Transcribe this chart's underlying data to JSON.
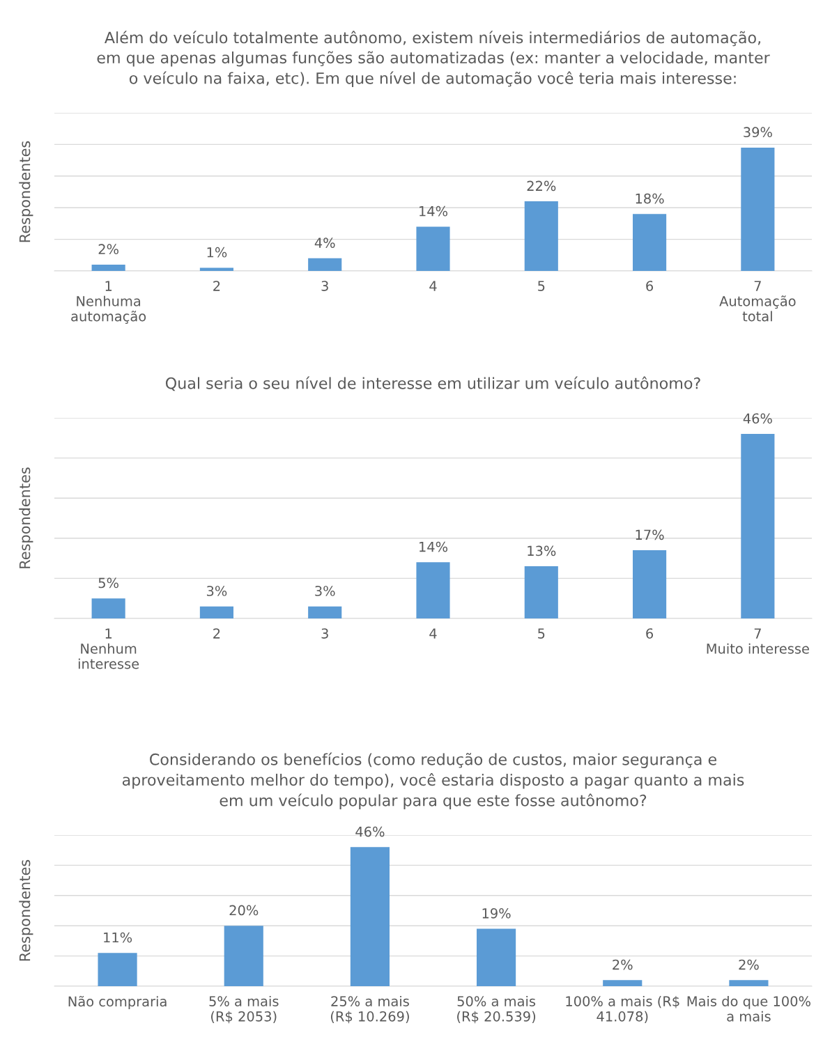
{
  "chart_data": [
    {
      "type": "bar",
      "title": "Além do veículo totalmente autônomo, existem níveis intermediários de automação,\nem que apenas algumas funções são automatizadas (ex: manter a velocidade, manter\no veículo na faixa, etc). Em que nível de automação você teria mais interesse:",
      "ylabel": "Respondentes",
      "categories": [
        "1\nNenhuma\nautomação",
        "2",
        "3",
        "4",
        "5",
        "6",
        "7\nAutomação\ntotal"
      ],
      "values": [
        2,
        1,
        4,
        14,
        22,
        18,
        39
      ],
      "color": "#5b9bd5",
      "data_labels": true,
      "value_labels": [
        "2%",
        "1%",
        "4%",
        "14%",
        "22%",
        "18%",
        "39%"
      ],
      "ylim": [
        0,
        50
      ],
      "yticks": [
        {
          "value": 0,
          "label": null
        },
        {
          "value": 10,
          "label": null
        },
        {
          "value": 20,
          "label": null
        },
        {
          "value": 30,
          "label": null
        },
        {
          "value": 40,
          "label": null
        },
        {
          "value": 50,
          "label": null
        }
      ],
      "grid": "y",
      "tick_labels": "x"
    },
    {
      "type": "bar",
      "title": "Qual seria o seu nível de interesse em utilizar um veículo autônomo?",
      "ylabel": "Respondentes",
      "categories": [
        "1\nNenhum\ninteresse",
        "2",
        "3",
        "4",
        "5",
        "6",
        "7\nMuito interesse"
      ],
      "values": [
        5,
        3,
        3,
        14,
        13,
        17,
        46
      ],
      "color": "#5b9bd5",
      "data_labels": true,
      "value_labels": [
        "5%",
        "3%",
        "3%",
        "14%",
        "13%",
        "17%",
        "46%"
      ],
      "ylim": [
        0,
        50
      ],
      "yticks": [
        {
          "value": 0,
          "label": null
        },
        {
          "value": 10,
          "label": null
        },
        {
          "value": 20,
          "label": null
        },
        {
          "value": 30,
          "label": null
        },
        {
          "value": 40,
          "label": null
        },
        {
          "value": 50,
          "label": null
        }
      ],
      "grid": "y",
      "tick_labels": "x"
    },
    {
      "type": "bar",
      "title": "Considerando os benefícios (como redução de custos, maior segurança e\naproveitamento melhor do tempo), você estaria disposto a pagar quanto a mais\nem um veículo popular para que este fosse autônomo?",
      "ylabel": "Respondentes",
      "categories": [
        "Não compraria",
        "5% a mais\n(R$ 2053)",
        "25% a mais\n(R$ 10.269)",
        "50% a mais\n(R$ 20.539)",
        "100% a mais (R$\n41.078)",
        "Mais do que 100%\na mais"
      ],
      "values": [
        11,
        20,
        46,
        19,
        2,
        2
      ],
      "color": "#5b9bd5",
      "data_labels": true,
      "value_labels": [
        "11%",
        "20%",
        "46%",
        "19%",
        "2%",
        "2%"
      ],
      "ylim": [
        0,
        50
      ],
      "yticks": [
        {
          "value": 0,
          "label": null
        },
        {
          "value": 10,
          "label": null
        },
        {
          "value": 20,
          "label": null
        },
        {
          "value": 30,
          "label": null
        },
        {
          "value": 40,
          "label": null
        },
        {
          "value": 50,
          "label": null
        }
      ],
      "grid": "y",
      "tick_labels": "x"
    }
  ]
}
